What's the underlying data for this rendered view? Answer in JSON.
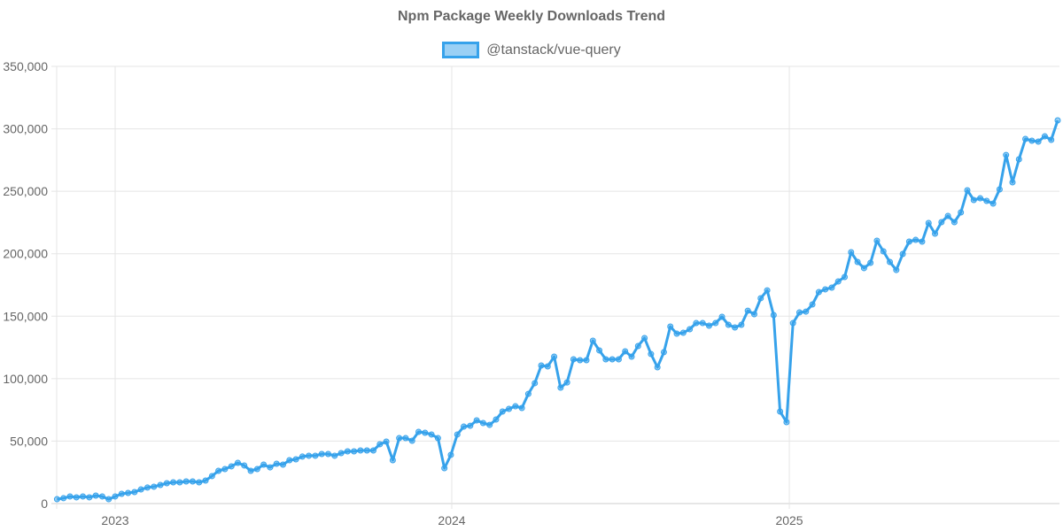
{
  "chart_data": {
    "type": "line",
    "title": "Npm Package Weekly Downloads Trend",
    "xlabel": "",
    "ylabel": "",
    "ylim": [
      0,
      350000
    ],
    "y_ticks": [
      "0",
      "50,000",
      "100,000",
      "150,000",
      "200,000",
      "250,000",
      "300,000",
      "350,000"
    ],
    "x_ticks": [
      "2023",
      "2024",
      "2025"
    ],
    "x_tick_dates": [
      "2023-01-01",
      "2024-01-01",
      "2025-01-01"
    ],
    "grid": true,
    "legend_position": "top",
    "colors": {
      "line": "#36a2eb",
      "fill": "rgba(54,162,235,0.5)"
    },
    "series": [
      {
        "name": "@tanstack/vue-query",
        "x": [
          "2022-10-30",
          "2022-11-06",
          "2022-11-13",
          "2022-11-20",
          "2022-11-27",
          "2022-12-04",
          "2022-12-11",
          "2022-12-18",
          "2022-12-25",
          "2023-01-01",
          "2023-01-08",
          "2023-01-15",
          "2023-01-22",
          "2023-01-29",
          "2023-02-05",
          "2023-02-12",
          "2023-02-19",
          "2023-02-26",
          "2023-03-05",
          "2023-03-12",
          "2023-03-19",
          "2023-03-26",
          "2023-04-02",
          "2023-04-09",
          "2023-04-16",
          "2023-04-23",
          "2023-04-30",
          "2023-05-07",
          "2023-05-14",
          "2023-05-21",
          "2023-05-28",
          "2023-06-04",
          "2023-06-11",
          "2023-06-18",
          "2023-06-25",
          "2023-07-02",
          "2023-07-09",
          "2023-07-16",
          "2023-07-23",
          "2023-07-30",
          "2023-08-06",
          "2023-08-13",
          "2023-08-20",
          "2023-08-27",
          "2023-09-03",
          "2023-09-10",
          "2023-09-17",
          "2023-09-24",
          "2023-10-01",
          "2023-10-08",
          "2023-10-15",
          "2023-10-22",
          "2023-10-29",
          "2023-11-05",
          "2023-11-12",
          "2023-11-19",
          "2023-11-26",
          "2023-12-03",
          "2023-12-10",
          "2023-12-17",
          "2023-12-24",
          "2023-12-31",
          "2024-01-07",
          "2024-01-14",
          "2024-01-21",
          "2024-01-28",
          "2024-02-04",
          "2024-02-11",
          "2024-02-18",
          "2024-02-25",
          "2024-03-03",
          "2024-03-10",
          "2024-03-17",
          "2024-03-24",
          "2024-03-31",
          "2024-04-07",
          "2024-04-14",
          "2024-04-21",
          "2024-04-28",
          "2024-05-05",
          "2024-05-12",
          "2024-05-19",
          "2024-05-26",
          "2024-06-02",
          "2024-06-09",
          "2024-06-16",
          "2024-06-23",
          "2024-06-30",
          "2024-07-07",
          "2024-07-14",
          "2024-07-21",
          "2024-07-28",
          "2024-08-04",
          "2024-08-11",
          "2024-08-18",
          "2024-08-25",
          "2024-09-01",
          "2024-09-08",
          "2024-09-15",
          "2024-09-22",
          "2024-09-29",
          "2024-10-06",
          "2024-10-13",
          "2024-10-20",
          "2024-10-27",
          "2024-11-03",
          "2024-11-10",
          "2024-11-17",
          "2024-11-24",
          "2024-12-01",
          "2024-12-08",
          "2024-12-15",
          "2024-12-22",
          "2024-12-29",
          "2025-01-05",
          "2025-01-12",
          "2025-01-19",
          "2025-01-26",
          "2025-02-02",
          "2025-02-09",
          "2025-02-16",
          "2025-02-23",
          "2025-03-02",
          "2025-03-09",
          "2025-03-16",
          "2025-03-23",
          "2025-03-30",
          "2025-04-06",
          "2025-04-13",
          "2025-04-20",
          "2025-04-27",
          "2025-05-04",
          "2025-05-11",
          "2025-05-18",
          "2025-05-25",
          "2025-06-01",
          "2025-06-08",
          "2025-06-15",
          "2025-06-22",
          "2025-06-29",
          "2025-07-06",
          "2025-07-13",
          "2025-07-20",
          "2025-07-27",
          "2025-08-03",
          "2025-08-10",
          "2025-08-17",
          "2025-08-24",
          "2025-08-31",
          "2025-09-07",
          "2025-09-14",
          "2025-09-21",
          "2025-09-28",
          "2025-10-05",
          "2025-10-12",
          "2025-10-19"
        ],
        "values": [
          3500,
          4300,
          5700,
          5000,
          5700,
          5000,
          6400,
          5700,
          3500,
          5700,
          7800,
          8500,
          9200,
          11300,
          12800,
          13500,
          14900,
          16300,
          17000,
          17000,
          17700,
          17700,
          17000,
          18400,
          22000,
          26200,
          27600,
          29800,
          32600,
          30500,
          26200,
          27600,
          31200,
          29000,
          31900,
          31200,
          34700,
          35400,
          37600,
          38300,
          38300,
          39700,
          39700,
          38300,
          40400,
          41800,
          41800,
          42500,
          42500,
          42500,
          47500,
          49600,
          34700,
          52400,
          52400,
          50300,
          57400,
          56700,
          55300,
          52400,
          28300,
          39000,
          55300,
          61600,
          62300,
          66600,
          64500,
          63000,
          67300,
          73700,
          75800,
          77900,
          76500,
          87800,
          96400,
          110500,
          109800,
          117600,
          92800,
          97000,
          115500,
          114800,
          114800,
          130400,
          122600,
          115500,
          115500,
          115500,
          121900,
          117600,
          126100,
          132500,
          119700,
          109100,
          121200,
          141700,
          136000,
          136700,
          139600,
          144500,
          144500,
          142400,
          144500,
          149500,
          143100,
          141000,
          143100,
          154400,
          151600,
          164400,
          170700,
          150900,
          73700,
          65200,
          144500,
          153000,
          153700,
          159400,
          169300,
          171500,
          172900,
          177800,
          181400,
          201200,
          193400,
          188500,
          192700,
          210400,
          201900,
          193400,
          187000,
          199800,
          209700,
          211100,
          209700,
          224600,
          216100,
          225300,
          230300,
          225300,
          233100,
          250800,
          243000,
          244400,
          242300,
          240200,
          251500,
          279100,
          257200,
          275600,
          291900,
          290500,
          289800,
          294000,
          291200,
          306800
        ]
      }
    ]
  }
}
